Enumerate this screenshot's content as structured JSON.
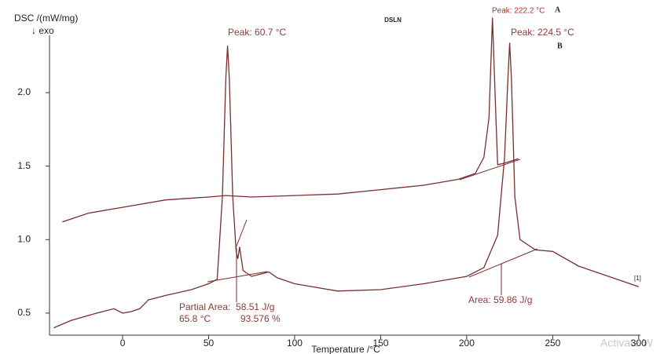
{
  "chart_data": {
    "type": "line",
    "title": "DSLN",
    "y_label": "DSC /(mW/mg)",
    "y_note": "↓ exo",
    "x_label": "Temperature /°C",
    "xlim": [
      -42.5,
      301
    ],
    "ylim": [
      0.35,
      2.39
    ],
    "xticks": [
      0,
      50,
      100,
      150,
      200,
      250,
      300
    ],
    "yticks": [
      {
        "value": 0.5,
        "label": "0.5"
      },
      {
        "value": 1.0,
        "label": "1.0"
      },
      {
        "value": 1.5,
        "label": "1.5"
      },
      {
        "value": 2.0,
        "label": "2.0"
      }
    ],
    "series": [
      {
        "name": "A",
        "color": "#7a2e2e",
        "x": [
          -35,
          -20,
          0,
          25,
          50,
          60,
          75,
          100,
          125,
          150,
          175,
          195,
          205,
          210,
          213,
          215,
          217,
          218,
          222,
          230
        ],
        "values": [
          1.12,
          1.18,
          1.22,
          1.27,
          1.29,
          1.3,
          1.29,
          1.3,
          1.31,
          1.34,
          1.37,
          1.41,
          1.45,
          1.56,
          1.83,
          2.51,
          1.83,
          1.51,
          1.52,
          1.55
        ]
      },
      {
        "name": "B",
        "color": "#7a2e2e",
        "x": [
          -40,
          -30,
          -15,
          -5,
          0,
          5,
          10,
          15,
          25,
          40,
          50,
          55,
          58,
          60,
          61,
          62,
          64,
          66,
          67,
          68,
          70,
          75,
          85,
          90,
          100,
          125,
          150,
          175,
          200,
          210,
          218,
          222,
          224,
          225,
          226,
          228,
          231,
          240,
          250,
          265,
          280,
          300
        ],
        "values": [
          0.4,
          0.45,
          0.5,
          0.53,
          0.5,
          0.51,
          0.53,
          0.59,
          0.62,
          0.66,
          0.7,
          0.73,
          1.29,
          2.1,
          2.32,
          2.1,
          1.29,
          0.92,
          0.87,
          0.95,
          0.79,
          0.75,
          0.78,
          0.74,
          0.7,
          0.65,
          0.66,
          0.7,
          0.75,
          0.81,
          1.03,
          1.56,
          2.1,
          2.34,
          2.1,
          1.29,
          1.0,
          0.93,
          0.92,
          0.82,
          0.76,
          0.68
        ]
      }
    ],
    "annotations": [
      "Peak: 222.2 °C",
      "Peak: 224.5 °C",
      "Peak: 60.7 °C",
      "Partial Area:  58.51 J/g",
      "65.8 °C",
      "93.576 %",
      "Area: 59.86 J/g",
      "[1]",
      "Activate W"
    ]
  }
}
